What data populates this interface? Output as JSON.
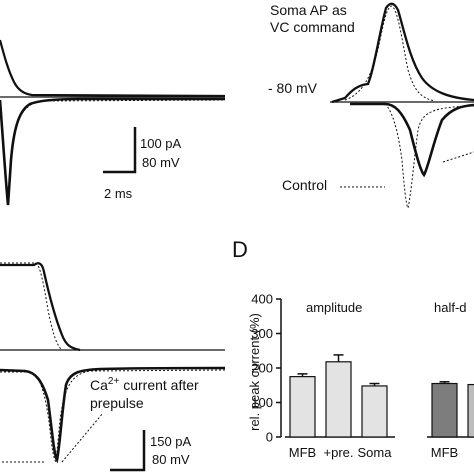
{
  "panel_tr": {
    "annotation_line1": "Soma AP as",
    "annotation_line2": "VC command",
    "holding_label": "- 80 mV",
    "control_label": "Control"
  },
  "panel_tl": {
    "scale_current": "100 pA",
    "scale_voltage": "80 mV",
    "scale_time": "2 ms"
  },
  "panel_bl": {
    "annotation_line1": "Ca",
    "annotation_sup": "2+",
    "annotation_line1_rest": " current after",
    "annotation_line2": "prepulse",
    "scale_current": "150 pA",
    "scale_voltage": "80 mV"
  },
  "panel_d": {
    "letter": "D"
  },
  "chart_data": {
    "type": "bar",
    "ylabel": "rel. peak current (%)",
    "ylim": [
      0,
      400
    ],
    "yticks": [
      "0",
      "100",
      "200",
      "300",
      "400"
    ],
    "groups": [
      {
        "title": "amplitude",
        "categories": [
          "MFB",
          "+pre.",
          "Soma"
        ],
        "values": [
          175,
          218,
          148
        ],
        "errors": [
          8,
          20,
          7
        ],
        "colors": [
          "#e3e3e3",
          "#e3e3e3",
          "#e3e3e3"
        ]
      },
      {
        "title": "half-d",
        "categories": [
          "MFB",
          "+"
        ],
        "values": [
          155,
          152
        ],
        "errors": [
          5,
          5
        ],
        "colors": [
          "#7d7d7d",
          "#bcbcbc"
        ]
      }
    ]
  },
  "colors": {
    "trace": "#111111",
    "axis": "#111111"
  }
}
